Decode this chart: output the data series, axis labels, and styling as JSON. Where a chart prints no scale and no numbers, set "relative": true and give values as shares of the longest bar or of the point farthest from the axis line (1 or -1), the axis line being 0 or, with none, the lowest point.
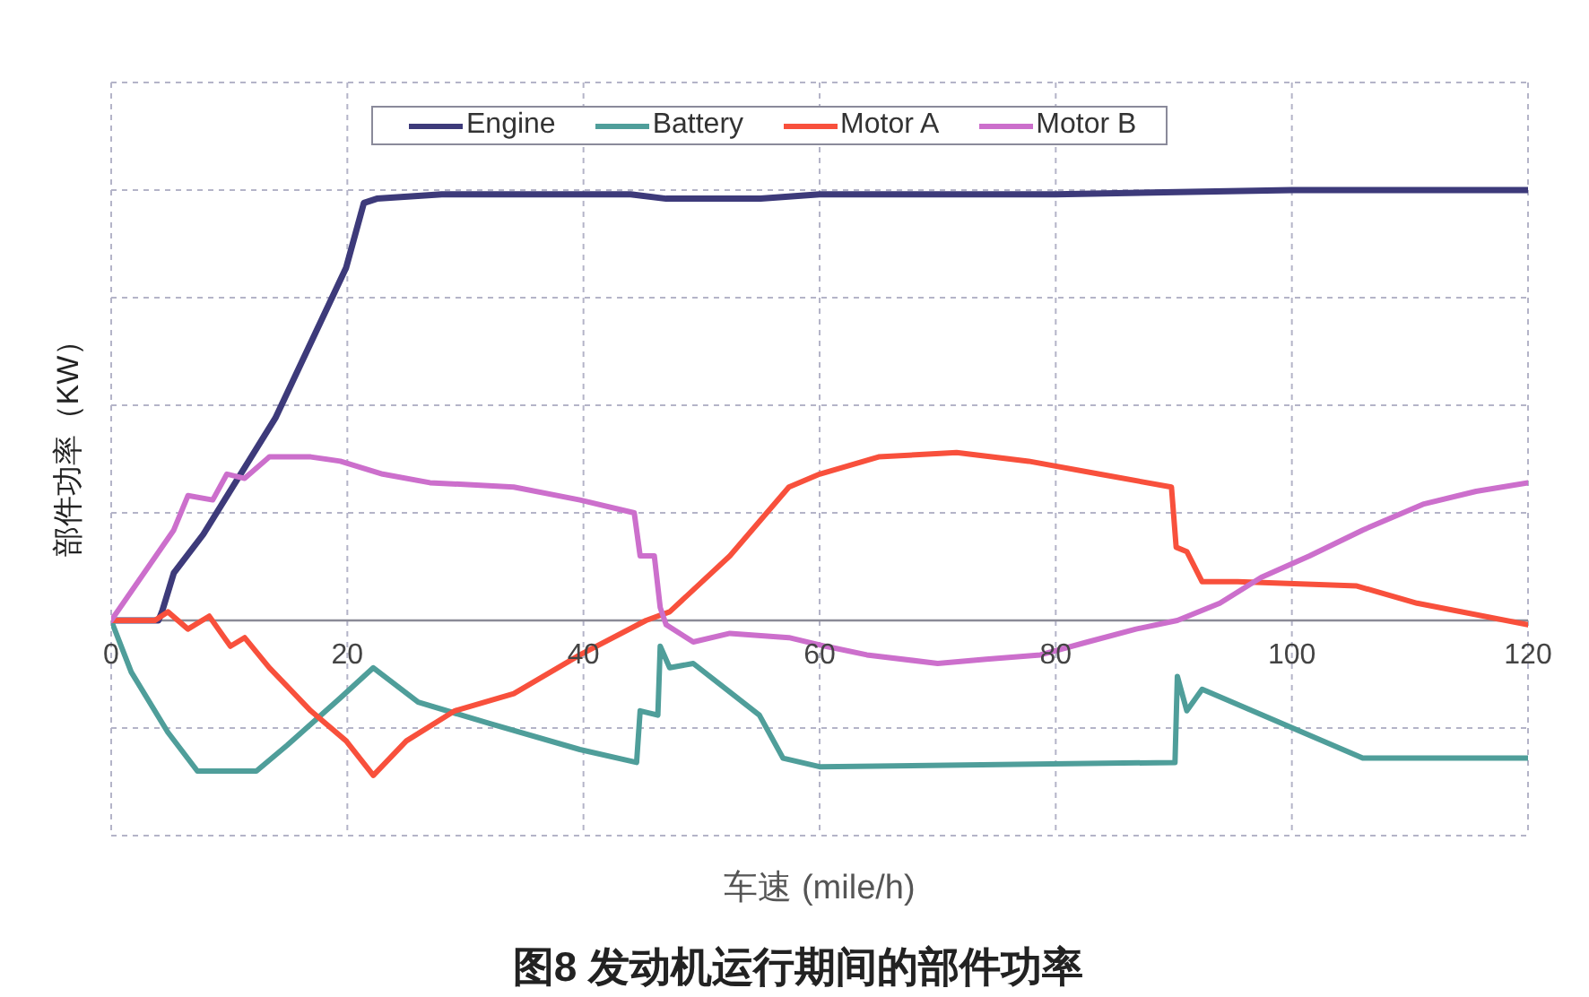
{
  "chart_data": {
    "type": "line",
    "title": "图8 发动机运行期间的部件功率",
    "xlabel": "车速 (mile/h)",
    "ylabel": "部件功率（KW）",
    "relative": true,
    "xlim": [
      0,
      120
    ],
    "xticks": [
      0,
      20,
      40,
      60,
      80,
      100,
      120
    ],
    "grid": true,
    "legend": "top",
    "marker": "none",
    "line_style": "solid",
    "series": [
      {
        "name": "Engine",
        "color": "#3d3a7a",
        "x": [
          0,
          4,
          4.3,
          5.3,
          7.8,
          13.9,
          19.9,
          21.4,
          22.5,
          28,
          35,
          44,
          47,
          55,
          60,
          80,
          100,
          120
        ],
        "values": [
          0,
          0,
          0.02,
          0.11,
          0.2,
          0.47,
          0.82,
          0.97,
          0.98,
          0.99,
          0.99,
          0.99,
          0.98,
          0.98,
          0.99,
          0.99,
          1,
          1
        ]
      },
      {
        "name": "Battery",
        "color": "#4f9e9a",
        "x": [
          0,
          1.7,
          4.8,
          7.3,
          12.3,
          14.9,
          19.4,
          22.2,
          26,
          32.1,
          39.7,
          44.5,
          44.8,
          46.3,
          46.5,
          47.3,
          49.3,
          54.9,
          56.9,
          60,
          90.1,
          90.3,
          91.1,
          92.4,
          106,
          120
        ],
        "values": [
          0,
          -0.12,
          -0.26,
          -0.35,
          -0.35,
          -0.29,
          -0.18,
          -0.11,
          -0.19,
          -0.24,
          -0.3,
          -0.33,
          -0.21,
          -0.22,
          -0.06,
          -0.11,
          -0.1,
          -0.22,
          -0.32,
          -0.34,
          -0.33,
          -0.13,
          -0.21,
          -0.16,
          -0.32,
          -0.32
        ]
      },
      {
        "name": "Motor A",
        "color": "#f8503c",
        "x": [
          0,
          3.7,
          4.8,
          6.5,
          8.3,
          10.1,
          11.3,
          13.4,
          16.9,
          19.9,
          22.2,
          25,
          29.1,
          34.1,
          39.7,
          45.3,
          47.3,
          52.4,
          57.4,
          60,
          65,
          71.6,
          77.7,
          83.7,
          89.8,
          90.2,
          91.1,
          92.4,
          95.4,
          105.5,
          110.6,
          120
        ],
        "values": [
          0,
          0,
          0.02,
          -0.02,
          0.01,
          -0.06,
          -0.04,
          -0.11,
          -0.21,
          -0.28,
          -0.36,
          -0.28,
          -0.21,
          -0.17,
          -0.08,
          0,
          0.02,
          0.15,
          0.31,
          0.34,
          0.38,
          0.39,
          0.37,
          0.34,
          0.31,
          0.17,
          0.16,
          0.09,
          0.09,
          0.08,
          0.04,
          -0.01
        ]
      },
      {
        "name": "Motor B",
        "color": "#cc6fcc",
        "x": [
          0,
          5.3,
          6.5,
          8.6,
          9.8,
          11.3,
          13.4,
          16.9,
          19.4,
          23,
          27,
          34.1,
          39.7,
          44.3,
          44.8,
          46,
          46.5,
          47,
          49.3,
          52.4,
          57.4,
          60.5,
          64,
          70,
          74.1,
          78.7,
          82.7,
          86.8,
          90.3,
          93.9,
          97.4,
          101.5,
          106,
          111.1,
          115.6,
          120
        ],
        "values": [
          0,
          0.21,
          0.29,
          0.28,
          0.34,
          0.33,
          0.38,
          0.38,
          0.37,
          0.34,
          0.32,
          0.31,
          0.28,
          0.25,
          0.15,
          0.15,
          0.03,
          -0.01,
          -0.05,
          -0.03,
          -0.04,
          -0.06,
          -0.08,
          -0.1,
          -0.09,
          -0.08,
          -0.05,
          -0.02,
          0,
          0.04,
          0.1,
          0.15,
          0.21,
          0.27,
          0.3,
          0.32
        ]
      }
    ]
  }
}
